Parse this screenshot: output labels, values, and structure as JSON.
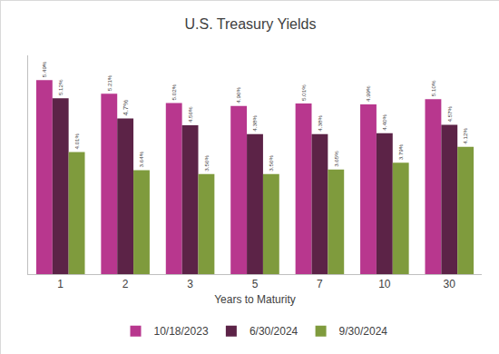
{
  "chart_data": {
    "type": "bar",
    "title": "U.S. Treasury Yields",
    "x_label": "Years to Maturity",
    "categories": [
      "1",
      "2",
      "3",
      "5",
      "7",
      "10",
      "30"
    ],
    "series": [
      {
        "name": "10/18/2023",
        "color": "#b8378e",
        "values": [
          5.49,
          5.21,
          5.02,
          4.96,
          5.01,
          4.99,
          5.1
        ],
        "value_labels": [
          "5.49%",
          "5.21%",
          "5.02%",
          "4.96%",
          "5.01%",
          "4.99%",
          "5.10%"
        ]
      },
      {
        "name": "6/30/2024",
        "color": "#5c2347",
        "values": [
          5.12,
          4.7,
          4.56,
          4.38,
          4.38,
          4.4,
          4.57
        ],
        "value_labels": [
          "5.12%",
          "4.7%",
          "4.56%",
          "4.38%",
          "4.38%",
          "4.40%",
          "4.57%"
        ]
      },
      {
        "name": "9/30/2024",
        "color": "#7f9b3d",
        "values": [
          4.01,
          3.64,
          3.56,
          3.56,
          3.65,
          3.79,
          4.12
        ],
        "value_labels": [
          "4.01%",
          "3.64%",
          "3.56%",
          "3.56%",
          "3.65%",
          "3.79%",
          "4.12%"
        ]
      }
    ],
    "ylim": [
      1.5,
      6
    ],
    "yticks": [],
    "grid": false,
    "legend": "bottom",
    "data_labels": true,
    "tick_labels": "x"
  }
}
